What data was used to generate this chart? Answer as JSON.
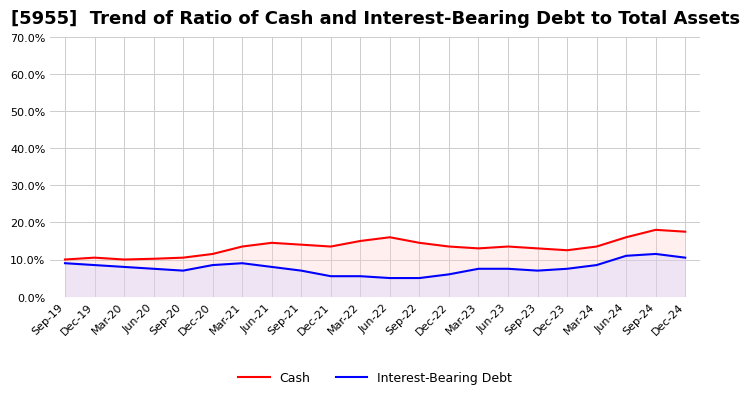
{
  "title": "[5955]  Trend of Ratio of Cash and Interest-Bearing Debt to Total Assets",
  "x_labels": [
    "Sep-19",
    "Dec-19",
    "Mar-20",
    "Jun-20",
    "Sep-20",
    "Dec-20",
    "Mar-21",
    "Jun-21",
    "Sep-21",
    "Dec-21",
    "Mar-22",
    "Jun-22",
    "Sep-22",
    "Dec-22",
    "Mar-23",
    "Jun-23",
    "Sep-23",
    "Dec-23",
    "Mar-24",
    "Jun-24",
    "Sep-24",
    "Dec-24"
  ],
  "cash": [
    10.0,
    10.5,
    10.0,
    10.2,
    10.5,
    11.5,
    13.5,
    14.5,
    14.0,
    13.5,
    15.0,
    16.0,
    14.5,
    13.5,
    13.0,
    13.5,
    13.0,
    12.5,
    13.5,
    16.0,
    18.0,
    17.5
  ],
  "interest_bearing_debt": [
    9.0,
    8.5,
    8.0,
    7.5,
    7.0,
    8.5,
    9.0,
    8.0,
    7.0,
    5.5,
    5.5,
    5.0,
    5.0,
    6.0,
    7.5,
    7.5,
    7.0,
    7.5,
    8.5,
    11.0,
    11.5,
    10.5
  ],
  "cash_color": "#ff0000",
  "debt_color": "#0000ff",
  "cash_fill_color": "#ffcccc",
  "debt_fill_color": "#ccccff",
  "ylim": [
    0.0,
    70.0
  ],
  "yticks": [
    0.0,
    10.0,
    20.0,
    30.0,
    40.0,
    50.0,
    60.0,
    70.0
  ],
  "background_color": "#ffffff",
  "grid_color": "#cccccc",
  "title_fontsize": 13,
  "legend_cash": "Cash",
  "legend_debt": "Interest-Bearing Debt"
}
